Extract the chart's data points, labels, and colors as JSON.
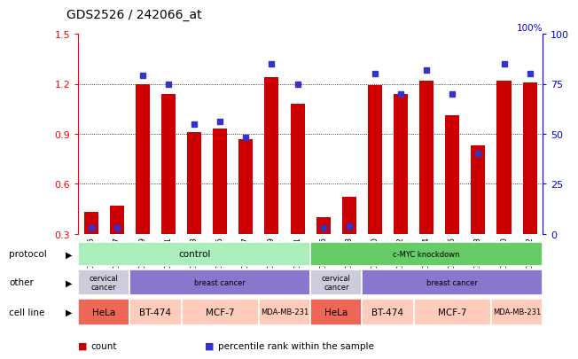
{
  "title": "GDS2526 / 242066_at",
  "samples": [
    "GSM136095",
    "GSM136097",
    "GSM136079",
    "GSM136081",
    "GSM136083",
    "GSM136085",
    "GSM136087",
    "GSM136089",
    "GSM136091",
    "GSM136096",
    "GSM136098",
    "GSM136080",
    "GSM136082",
    "GSM136084",
    "GSM136086",
    "GSM136088",
    "GSM136090",
    "GSM136092"
  ],
  "counts": [
    0.43,
    0.47,
    1.2,
    1.14,
    0.91,
    0.93,
    0.87,
    1.24,
    1.08,
    0.4,
    0.52,
    1.19,
    1.14,
    1.22,
    1.01,
    0.83,
    1.22,
    1.21
  ],
  "percentiles": [
    3,
    3,
    79,
    75,
    55,
    56,
    48,
    85,
    75,
    3,
    4,
    80,
    70,
    82,
    70,
    40,
    85,
    80
  ],
  "ylim_left": [
    0.3,
    1.5
  ],
  "ylim_right": [
    0,
    100
  ],
  "yticks_left": [
    0.3,
    0.6,
    0.9,
    1.2,
    1.5
  ],
  "yticks_right": [
    0,
    25,
    50,
    75,
    100
  ],
  "bar_color": "#cc0000",
  "dot_color": "#3333cc",
  "bg_color": "#ffffff",
  "protocol_color_control": "#aaeebb",
  "protocol_color_cmyc": "#66cc66",
  "other_color_cervical": "#ccccdd",
  "other_color_breast": "#8877cc",
  "cell_line_entries": [
    {
      "label": "HeLa",
      "span": [
        0,
        2
      ],
      "color": "#ee6655"
    },
    {
      "label": "BT-474",
      "span": [
        2,
        4
      ],
      "color": "#ffccbb"
    },
    {
      "label": "MCF-7",
      "span": [
        4,
        7
      ],
      "color": "#ffccbb"
    },
    {
      "label": "MDA-MB-231",
      "span": [
        7,
        9
      ],
      "color": "#ffccbb"
    },
    {
      "label": "HeLa",
      "span": [
        9,
        11
      ],
      "color": "#ee6655"
    },
    {
      "label": "BT-474",
      "span": [
        11,
        13
      ],
      "color": "#ffccbb"
    },
    {
      "label": "MCF-7",
      "span": [
        13,
        16
      ],
      "color": "#ffccbb"
    },
    {
      "label": "MDA-MB-231",
      "span": [
        16,
        18
      ],
      "color": "#ffccbb"
    }
  ],
  "legend_items": [
    {
      "label": "count",
      "color": "#cc0000"
    },
    {
      "label": "percentile rank within the sample",
      "color": "#3333cc"
    }
  ]
}
